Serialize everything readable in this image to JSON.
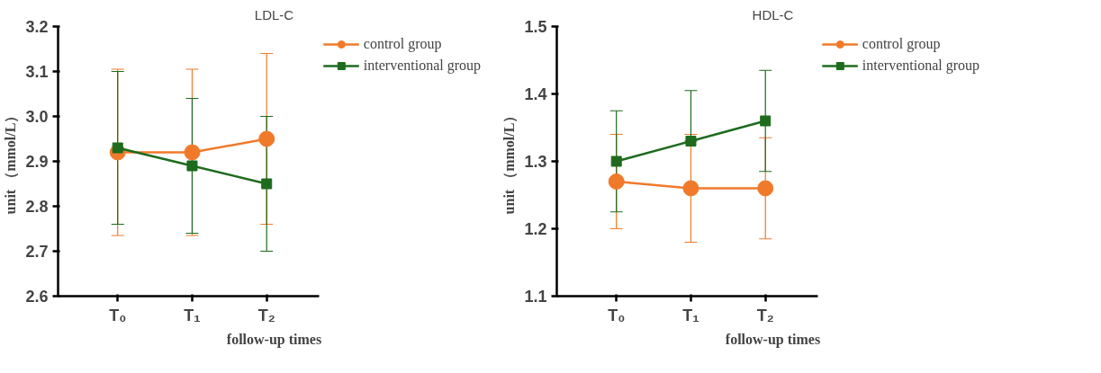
{
  "chart_data": [
    {
      "type": "line",
      "title": "LDL-C",
      "xlabel": "follow-up times",
      "ylabel": "unit （mmol/L）",
      "categories": [
        "T₀",
        "T₁",
        "T₂"
      ],
      "ylim": [
        2.6,
        3.2
      ],
      "yticks": [
        2.6,
        2.7,
        2.8,
        2.9,
        {
          "value": 3.0,
          "label": "3.0"
        },
        3.1,
        3.2
      ],
      "grid": false,
      "legend": "top right",
      "series": [
        {
          "name": "control group",
          "color": "#f07a2a",
          "marker": "circle",
          "values": [
            2.92,
            2.92,
            2.95
          ],
          "errors": [
            [
              2.735,
              3.105
            ],
            [
              2.735,
              3.105
            ],
            [
              2.76,
              3.14
            ]
          ]
        },
        {
          "name": "interventional group",
          "color": "#1e6b1e",
          "marker": "square",
          "values": [
            2.93,
            2.89,
            2.85
          ],
          "errors": [
            [
              2.76,
              3.1
            ],
            [
              2.74,
              3.04
            ],
            [
              2.7,
              3.0
            ]
          ]
        }
      ]
    },
    {
      "type": "line",
      "title": "HDL-C",
      "xlabel": "follow-up times",
      "ylabel": "unit （mmol/L）",
      "categories": [
        "T₀",
        "T₁",
        "T₂"
      ],
      "ylim": [
        1.1,
        1.5
      ],
      "yticks": [
        1.1,
        1.2,
        1.3,
        1.4,
        1.5
      ],
      "grid": false,
      "legend": "top right",
      "series": [
        {
          "name": "control group",
          "color": "#f07a2a",
          "marker": "circle",
          "values": [
            1.27,
            1.26,
            1.26
          ],
          "errors": [
            [
              1.2,
              1.34
            ],
            [
              1.18,
              1.34
            ],
            [
              1.185,
              1.335
            ]
          ]
        },
        {
          "name": "interventional group",
          "color": "#1e6b1e",
          "marker": "square",
          "values": [
            1.3,
            1.33,
            1.36
          ],
          "errors": [
            [
              1.225,
              1.375
            ],
            [
              1.33,
              1.405
            ],
            [
              1.285,
              1.435
            ]
          ]
        }
      ]
    }
  ]
}
